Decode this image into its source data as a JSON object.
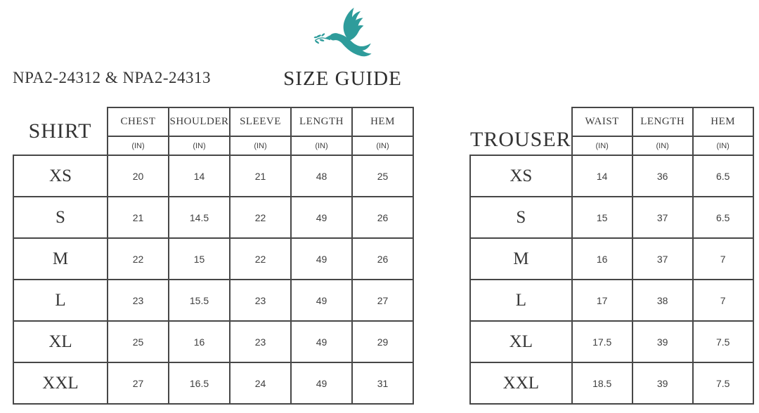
{
  "page": {
    "product_code": "NPA2-24312 & NPA2-24313",
    "title": "SIZE GUIDE",
    "logo_icon": "dove-with-olive-branch",
    "accent_color": "#2E9C9B"
  },
  "shirt_table": {
    "label": "SHIRT",
    "columns": [
      "CHEST",
      "SHOULDER",
      "SLEEVE",
      "LENGTH",
      "HEM"
    ],
    "unit": "(IN)",
    "sizes": [
      "XS",
      "S",
      "M",
      "L",
      "XL",
      "XXL"
    ],
    "rows": [
      [
        "20",
        "14",
        "21",
        "48",
        "25"
      ],
      [
        "21",
        "14.5",
        "22",
        "49",
        "26"
      ],
      [
        "22",
        "15",
        "22",
        "49",
        "26"
      ],
      [
        "23",
        "15.5",
        "23",
        "49",
        "27"
      ],
      [
        "25",
        "16",
        "23",
        "49",
        "29"
      ],
      [
        "27",
        "16.5",
        "24",
        "49",
        "31"
      ]
    ]
  },
  "trouser_table": {
    "label": "TROUSER",
    "columns": [
      "WAIST",
      "LENGTH",
      "HEM"
    ],
    "unit": "(IN)",
    "sizes": [
      "XS",
      "S",
      "M",
      "L",
      "XL",
      "XXL"
    ],
    "rows": [
      [
        "14",
        "36",
        "6.5"
      ],
      [
        "15",
        "37",
        "6.5"
      ],
      [
        "16",
        "37",
        "7"
      ],
      [
        "17",
        "38",
        "7"
      ],
      [
        "17.5",
        "39",
        "7.5"
      ],
      [
        "18.5",
        "39",
        "7.5"
      ]
    ]
  },
  "colors": {
    "accent": "#2E9C9B",
    "border": "#474747",
    "text": "#3b3b3b"
  }
}
